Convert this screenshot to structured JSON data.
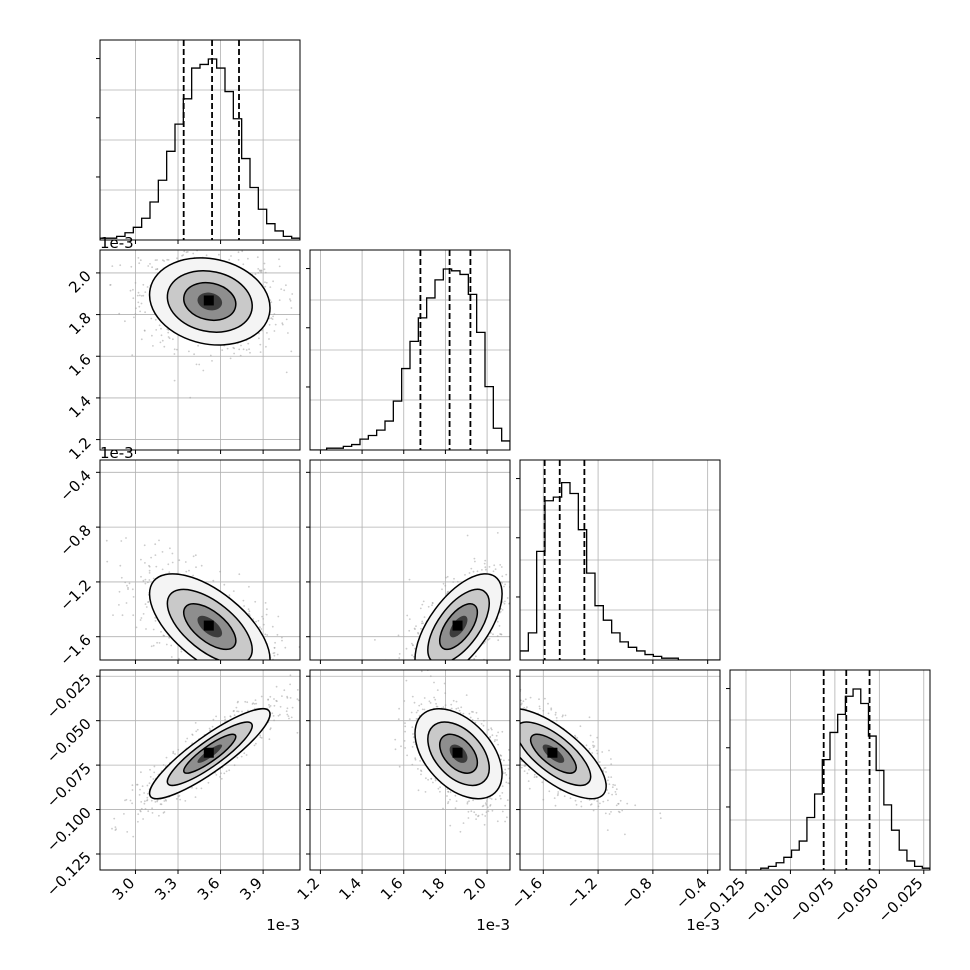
{
  "chart_data": {
    "type": "corner",
    "grid": true,
    "style": {
      "hist_color": "#000000",
      "quantile_color": "#000000",
      "contour_color": "#000000",
      "scatter_color": "#a0a0a0",
      "grid_color": "#b0b0b0"
    },
    "parameters": [
      {
        "range": [
          0.00275,
          0.00416
        ],
        "ticks": [
          0.003,
          0.0033,
          0.0036,
          0.0039
        ],
        "tick_labels": [
          "3.0",
          "3.3",
          "3.6",
          "3.9"
        ],
        "offset_label": "1e-3",
        "quantiles": [
          0.00334,
          0.00354,
          0.00373
        ],
        "hist_max": 100,
        "hist": [
          1,
          1,
          2,
          4,
          7,
          12,
          21,
          33,
          49,
          64,
          78,
          95,
          97,
          100,
          95,
          82,
          67,
          45,
          29,
          17,
          9,
          5,
          2,
          1
        ]
      },
      {
        "range": [
          0.00115,
          0.00211
        ],
        "ticks": [
          0.0012,
          0.0014,
          0.0016,
          0.0018,
          0.002
        ],
        "tick_labels": [
          "1.2",
          "1.4",
          "1.6",
          "1.8",
          "2.0"
        ],
        "offset_label": "1e-3",
        "quantiles": [
          0.00168,
          0.00182,
          0.00192
        ],
        "hist_max": 100,
        "hist": [
          0,
          0,
          1,
          1,
          2,
          3,
          6,
          8,
          11,
          16,
          27,
          45,
          60,
          73,
          84,
          94,
          100,
          99,
          97,
          86,
          65,
          35,
          12,
          5
        ]
      },
      {
        "range": [
          -0.00177,
          -0.00031
        ],
        "ticks": [
          -0.0016,
          -0.0012,
          -0.0008,
          -0.0004
        ],
        "tick_labels": [
          "−1.6",
          "−1.2",
          "−0.8",
          "−0.4"
        ],
        "offset_label": "1e-3",
        "quantiles": [
          -0.00159,
          -0.00148,
          -0.0013
        ],
        "hist_max": 100,
        "hist": [
          5,
          15,
          60,
          88,
          90,
          98,
          92,
          72,
          48,
          30,
          22,
          15,
          10,
          7,
          5,
          3,
          2,
          1,
          1,
          0,
          0,
          0,
          0,
          0
        ]
      },
      {
        "range": [
          -0.134,
          -0.0215
        ],
        "ticks": [
          -0.125,
          -0.1,
          -0.075,
          -0.05,
          -0.025
        ],
        "tick_labels": [
          "−0.125",
          "−0.100",
          "−0.075",
          "−0.050",
          "−0.025"
        ],
        "offset_label": "",
        "quantiles": [
          -0.0813,
          -0.0686,
          -0.0555
        ],
        "hist_max": 100,
        "hist": [
          0,
          0,
          0,
          0,
          1,
          2,
          4,
          7,
          11,
          16,
          29,
          42,
          61,
          76,
          86,
          96,
          100,
          92,
          74,
          55,
          36,
          22,
          11,
          5,
          2,
          1
        ]
      }
    ],
    "pairs": [
      {
        "x": 0,
        "y": 1,
        "center": [
          0.003524,
          0.001863
        ],
        "sd": [
          0.000193,
          9.5e-05
        ],
        "rho": -0.15
      },
      {
        "x": 0,
        "y": 2,
        "center": [
          0.003524,
          -0.001526
        ],
        "sd": [
          0.000193,
          0.000175
        ],
        "rho": -0.62
      },
      {
        "x": 1,
        "y": 2,
        "center": [
          0.001863,
          -0.001526
        ],
        "sd": [
          9.5e-05,
          0.000175
        ],
        "rho": 0.62
      },
      {
        "x": 0,
        "y": 3,
        "center": [
          0.003524,
          -0.0686
        ],
        "sd": [
          0.000193,
          0.0115
        ],
        "rho": 0.88
      },
      {
        "x": 1,
        "y": 3,
        "center": [
          0.001863,
          -0.0686
        ],
        "sd": [
          9.5e-05,
          0.0115
        ],
        "rho": -0.45
      },
      {
        "x": 2,
        "y": 3,
        "center": [
          -0.001526,
          -0.0686
        ],
        "sd": [
          0.000175,
          0.0115
        ],
        "rho": -0.72
      }
    ]
  }
}
